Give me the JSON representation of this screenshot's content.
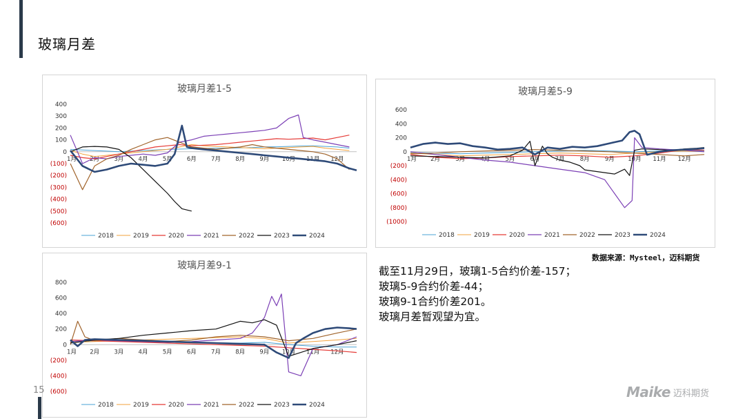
{
  "page": {
    "title": "玻璃月差",
    "page_number": "15",
    "source": "数据来源：Mysteel，迈科期货",
    "summary": [
      "截至11月29日，玻璃1-5合约价差-157；",
      "玻璃5-9合约价差-44；",
      "玻璃9-1合约价差201。",
      "玻璃月差暂观望为宜。"
    ],
    "logo": {
      "en": "Maike",
      "cn": "迈科期货"
    }
  },
  "chart_data": [
    {
      "type": "line",
      "title": "玻璃月差1-5",
      "ylim": [
        -600,
        400
      ],
      "yticks": [
        400,
        300,
        200,
        100,
        0,
        -100,
        -200,
        -300,
        -400,
        -500,
        -600
      ],
      "ytick_labels": [
        "400",
        "300",
        "200",
        "100",
        "0",
        "(100)",
        "(200)",
        "(300)",
        "(400)",
        "(500)",
        "(600)"
      ],
      "x_ticks": [
        "1月",
        "2月",
        "3月",
        "4月",
        "5月",
        "6月",
        "7月",
        "8月",
        "9月",
        "10月",
        "11月",
        "12月"
      ],
      "legend": "bottom",
      "series": [
        {
          "name": "2018",
          "color": "#4aa3d6",
          "width": 1,
          "x": [
            0,
            0.5,
            1,
            1.5,
            2,
            2.5,
            3,
            3.5,
            4,
            4.5,
            5,
            5.5,
            6,
            6.5,
            7,
            7.5,
            8,
            8.5,
            9,
            9.5,
            10,
            10.5,
            11,
            11.5
          ],
          "values": [
            20,
            15,
            10,
            5,
            0,
            5,
            10,
            15,
            20,
            22,
            25,
            28,
            30,
            30,
            32,
            35,
            40,
            42,
            45,
            48,
            50,
            45,
            40,
            30
          ]
        },
        {
          "name": "2019",
          "color": "#f2a13b",
          "width": 1,
          "x": [
            0,
            0.5,
            1,
            1.5,
            2,
            2.5,
            3,
            3.5,
            4,
            4.5,
            5,
            5.5,
            6,
            6.5,
            7,
            7.5,
            8,
            8.5,
            9,
            9.5,
            10,
            10.5,
            11,
            11.5
          ],
          "values": [
            10,
            -20,
            -40,
            -30,
            -20,
            -10,
            0,
            10,
            20,
            40,
            60,
            50,
            45,
            40,
            35,
            30,
            25,
            30,
            35,
            40,
            45,
            30,
            20,
            10
          ]
        },
        {
          "name": "2020",
          "color": "#e53935",
          "width": 1.2,
          "x": [
            0,
            0.5,
            1,
            1.5,
            2,
            2.5,
            3,
            3.5,
            4,
            4.5,
            5,
            5.5,
            6,
            6.5,
            7,
            7.5,
            8,
            8.5,
            9,
            9.5,
            10,
            10.5,
            11,
            11.5
          ],
          "values": [
            -30,
            -50,
            -60,
            -40,
            -20,
            0,
            20,
            40,
            50,
            60,
            50,
            55,
            60,
            70,
            80,
            90,
            100,
            110,
            105,
            110,
            115,
            100,
            120,
            140
          ]
        },
        {
          "name": "2021",
          "color": "#7b3fb5",
          "width": 1.2,
          "x": [
            0,
            0.5,
            1,
            1.5,
            2,
            2.5,
            3,
            3.5,
            4,
            4.5,
            5,
            5.5,
            6,
            6.5,
            7,
            7.5,
            8,
            8.5,
            9,
            9.4,
            9.6,
            10,
            10.5,
            11,
            11.5
          ],
          "values": [
            140,
            -100,
            -50,
            -60,
            -40,
            -30,
            -20,
            -30,
            -10,
            80,
            100,
            130,
            140,
            150,
            160,
            170,
            180,
            200,
            280,
            310,
            120,
            100,
            80,
            60,
            40
          ]
        },
        {
          "name": "2022",
          "color": "#a0632a",
          "width": 1.2,
          "x": [
            0,
            0.5,
            1,
            1.5,
            2,
            2.5,
            3,
            3.5,
            4,
            4.5,
            5,
            5.5,
            6,
            6.5,
            7,
            7.5,
            8,
            8.5,
            9,
            9.5,
            10,
            10.5,
            11,
            11.5
          ],
          "values": [
            -100,
            -320,
            -120,
            -60,
            -30,
            20,
            60,
            100,
            120,
            80,
            40,
            30,
            20,
            30,
            40,
            60,
            40,
            30,
            20,
            10,
            0,
            -20,
            -60,
            -150
          ]
        },
        {
          "name": "2023",
          "color": "#111111",
          "width": 1.2,
          "x": [
            0,
            0.5,
            1,
            1.5,
            2,
            2.5,
            3,
            3.5,
            4,
            4.3,
            4.6,
            5
          ],
          "values": [
            0,
            40,
            45,
            40,
            20,
            -50,
            -150,
            -250,
            -350,
            -420,
            -480,
            -500
          ]
        },
        {
          "name": "2024",
          "color": "#2e4a78",
          "width": 2.6,
          "x": [
            0,
            0.5,
            1,
            1.5,
            2,
            2.5,
            3,
            3.5,
            4,
            4.3,
            4.6,
            4.8,
            5,
            5.5,
            6,
            6.5,
            7,
            7.5,
            8,
            8.5,
            9,
            9.5,
            10,
            10.5,
            11,
            11.5,
            11.8
          ],
          "values": [
            10,
            -120,
            -170,
            -150,
            -120,
            -100,
            -110,
            -120,
            -100,
            -20,
            220,
            40,
            30,
            20,
            10,
            0,
            -10,
            -20,
            -30,
            -40,
            -50,
            -60,
            -70,
            -80,
            -100,
            -140,
            -157
          ]
        }
      ]
    },
    {
      "type": "line",
      "title": "玻璃月差5-9",
      "ylim": [
        -1000,
        600
      ],
      "yticks": [
        600,
        400,
        200,
        0,
        -200,
        -400,
        -600,
        -800,
        -1000
      ],
      "ytick_labels": [
        "600",
        "400",
        "200",
        "0",
        "(200)",
        "(400)",
        "(600)",
        "(800)",
        "(1000)"
      ],
      "x_ticks": [
        "1月",
        "2月",
        "3月",
        "4月",
        "5月",
        "6月",
        "7月",
        "8月",
        "9月",
        "10月",
        "11月",
        "12月"
      ],
      "legend": "bottom",
      "series": [
        {
          "name": "2018",
          "color": "#4aa3d6",
          "width": 1,
          "x": [
            0,
            1,
            2,
            3,
            4,
            5,
            6,
            7,
            8,
            9,
            10,
            11,
            11.8
          ],
          "values": [
            -10,
            -20,
            -30,
            -20,
            -10,
            0,
            10,
            20,
            10,
            0,
            10,
            20,
            10
          ]
        },
        {
          "name": "2019",
          "color": "#f2a13b",
          "width": 1,
          "x": [
            0,
            1,
            2,
            3,
            4,
            5,
            6,
            7,
            8,
            9,
            10,
            11,
            11.8
          ],
          "values": [
            -20,
            -40,
            -60,
            -50,
            -40,
            -30,
            -20,
            -30,
            -40,
            -20,
            0,
            10,
            0
          ]
        },
        {
          "name": "2020",
          "color": "#e53935",
          "width": 1.2,
          "x": [
            0,
            1,
            2,
            3,
            4,
            5,
            6,
            7,
            8,
            9,
            10,
            11,
            11.8
          ],
          "values": [
            -40,
            -80,
            -100,
            -90,
            -70,
            -60,
            -50,
            -60,
            -80,
            -60,
            -20,
            30,
            20
          ]
        },
        {
          "name": "2021",
          "color": "#7b3fb5",
          "width": 1.2,
          "x": [
            0,
            1,
            2,
            3,
            4,
            5,
            6,
            7,
            7.8,
            8.2,
            8.6,
            8.9,
            9,
            9.3,
            10,
            11,
            11.8
          ],
          "values": [
            0,
            -40,
            -80,
            -120,
            -150,
            -200,
            -250,
            -300,
            -400,
            -600,
            -800,
            -700,
            200,
            60,
            40,
            20,
            0
          ]
        },
        {
          "name": "2022",
          "color": "#a0632a",
          "width": 1.2,
          "x": [
            0,
            1,
            2,
            3,
            4,
            5,
            6,
            7,
            8,
            9,
            10,
            11,
            11.8
          ],
          "values": [
            -30,
            -20,
            0,
            10,
            20,
            30,
            20,
            10,
            0,
            -20,
            -40,
            -60,
            -40
          ]
        },
        {
          "name": "2023",
          "color": "#111111",
          "width": 1.2,
          "x": [
            0,
            1,
            2,
            3,
            4,
            4.5,
            4.8,
            5,
            5.3,
            5.5,
            5.7,
            6,
            6.4,
            6.8,
            7,
            7.4,
            7.8,
            8.2,
            8.6,
            8.8,
            9,
            9.3,
            10,
            10.5,
            11,
            11.5,
            11.8
          ],
          "values": [
            -60,
            -70,
            -80,
            -90,
            -60,
            20,
            150,
            -200,
            80,
            -30,
            -80,
            -120,
            -150,
            -200,
            -260,
            -280,
            -300,
            -320,
            -250,
            -340,
            20,
            40,
            30,
            20,
            40,
            50,
            60
          ]
        },
        {
          "name": "2024",
          "color": "#2e4a78",
          "width": 2.6,
          "x": [
            0,
            0.5,
            1,
            1.5,
            2,
            2.5,
            3,
            3.5,
            4,
            4.5,
            5,
            5.5,
            6,
            6.5,
            7,
            7.5,
            8,
            8.5,
            8.8,
            9,
            9.2,
            9.5,
            10,
            10.5,
            11,
            11.5,
            11.8
          ],
          "values": [
            60,
            110,
            130,
            110,
            120,
            80,
            60,
            30,
            40,
            60,
            -40,
            60,
            40,
            70,
            60,
            80,
            120,
            160,
            280,
            300,
            250,
            -44,
            0,
            20,
            30,
            40,
            50
          ]
        }
      ]
    },
    {
      "type": "line",
      "title": "玻璃月差9-1",
      "ylim": [
        -600,
        800
      ],
      "yticks": [
        800,
        600,
        400,
        200,
        0,
        -200,
        -400,
        -600
      ],
      "ytick_labels": [
        "800",
        "600",
        "400",
        "200",
        "0",
        "(200)",
        "(400)",
        "(600)"
      ],
      "x_ticks": [
        "1月",
        "2月",
        "3月",
        "4月",
        "5月",
        "6月",
        "7月",
        "8月",
        "9月",
        "10月",
        "11月",
        "12月"
      ],
      "legend": "bottom",
      "series": [
        {
          "name": "2018",
          "color": "#4aa3d6",
          "width": 1,
          "x": [
            0,
            1,
            2,
            3,
            4,
            5,
            6,
            7,
            8,
            9,
            10,
            11,
            11.8
          ],
          "values": [
            40,
            50,
            45,
            40,
            35,
            30,
            25,
            20,
            30,
            0,
            -20,
            -30,
            -30
          ]
        },
        {
          "name": "2019",
          "color": "#f2a13b",
          "width": 1,
          "x": [
            0,
            1,
            2,
            3,
            4,
            5,
            6,
            7,
            8,
            9,
            10,
            11,
            11.8
          ],
          "values": [
            30,
            40,
            50,
            60,
            70,
            80,
            90,
            100,
            80,
            20,
            40,
            60,
            80
          ]
        },
        {
          "name": "2020",
          "color": "#e53935",
          "width": 1.2,
          "x": [
            0,
            1,
            2,
            3,
            4,
            5,
            6,
            7,
            8,
            9,
            10,
            11,
            11.8
          ],
          "values": [
            60,
            50,
            40,
            30,
            20,
            10,
            0,
            -10,
            -20,
            -40,
            -60,
            -80,
            -100
          ]
        },
        {
          "name": "2021",
          "color": "#7b3fb5",
          "width": 1.2,
          "x": [
            0,
            1,
            2,
            3,
            4,
            5,
            6,
            7,
            7.5,
            8,
            8.3,
            8.5,
            8.7,
            9,
            9.5,
            10,
            11,
            11.8
          ],
          "values": [
            40,
            60,
            50,
            40,
            30,
            40,
            60,
            80,
            150,
            350,
            620,
            500,
            650,
            -350,
            -400,
            -50,
            0,
            100
          ]
        },
        {
          "name": "2022",
          "color": "#a0632a",
          "width": 1.2,
          "x": [
            0,
            0.3,
            0.6,
            1,
            2,
            3,
            4,
            5,
            6,
            7,
            8,
            9,
            10,
            11,
            11.8
          ],
          "values": [
            0,
            300,
            100,
            50,
            80,
            60,
            40,
            60,
            100,
            120,
            100,
            50,
            80,
            150,
            200
          ]
        },
        {
          "name": "2023",
          "color": "#111111",
          "width": 1.2,
          "x": [
            0,
            0.5,
            1,
            2,
            3,
            4,
            5,
            6,
            6.5,
            7,
            7.5,
            8,
            8.5,
            9,
            9.5,
            10,
            11,
            11.8
          ],
          "values": [
            20,
            40,
            60,
            80,
            120,
            150,
            180,
            200,
            250,
            300,
            280,
            320,
            250,
            -150,
            -100,
            -50,
            0,
            50
          ]
        },
        {
          "name": "2024",
          "color": "#2e4a78",
          "width": 2.6,
          "x": [
            0,
            0.3,
            0.6,
            1,
            2,
            3,
            4,
            5,
            6,
            7,
            8,
            8.5,
            9,
            9.3,
            9.6,
            10,
            10.5,
            11,
            11.5,
            11.8
          ],
          "values": [
            60,
            -20,
            60,
            70,
            60,
            50,
            40,
            30,
            20,
            10,
            0,
            -100,
            -170,
            20,
            80,
            150,
            200,
            220,
            210,
            201
          ]
        }
      ]
    }
  ]
}
